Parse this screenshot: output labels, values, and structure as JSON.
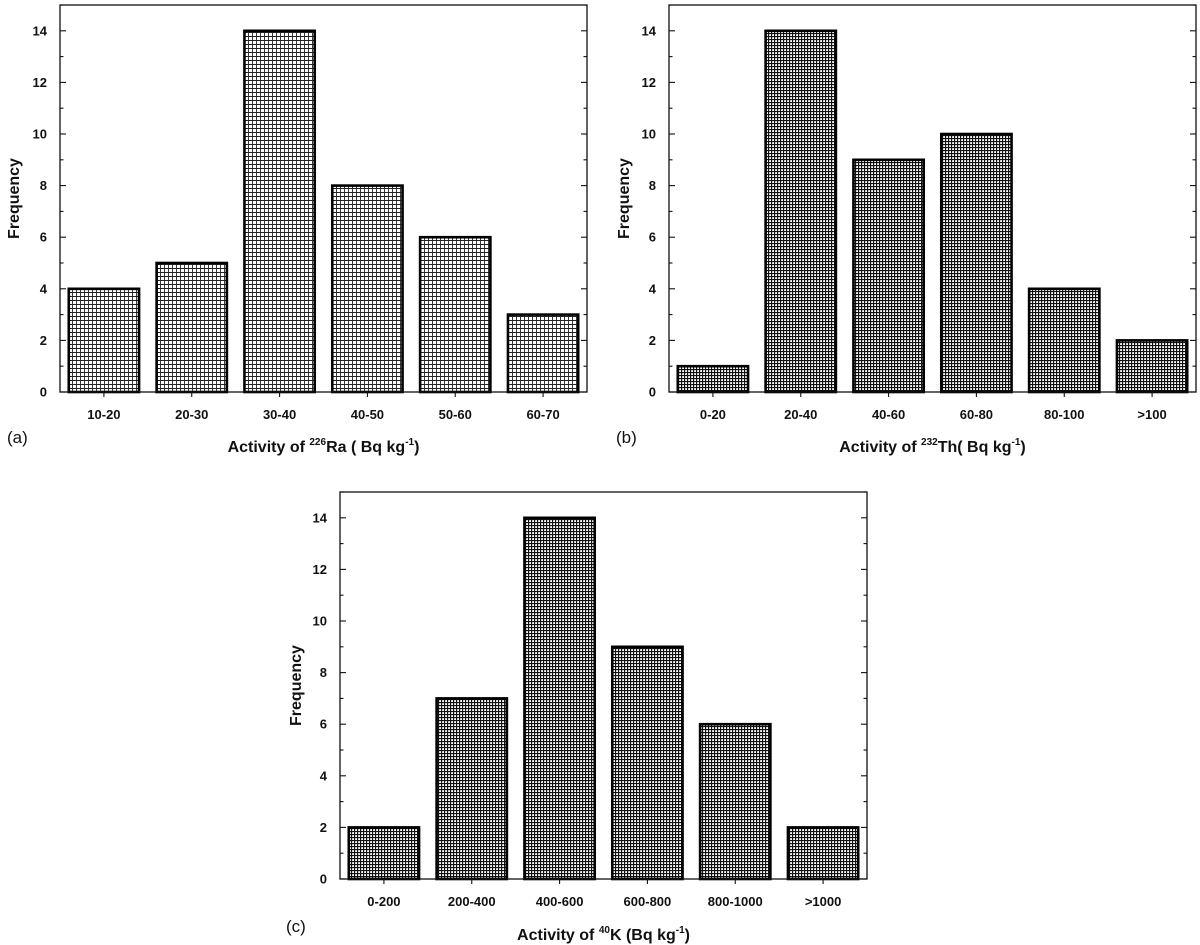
{
  "chart_data": [
    {
      "type": "bar",
      "panel_label": "(a)",
      "categories": [
        "10-20",
        "20-30",
        "30-40",
        "40-50",
        "50-60",
        "60-70"
      ],
      "values": [
        4,
        5,
        14,
        8,
        6,
        3
      ],
      "ylabel": "Frequency",
      "xlabel": {
        "prefix": "Activity of ",
        "isotope_mass": "226",
        "element": "Ra",
        "unit_open": " ( Bq kg",
        "unit_exp": "-1",
        "unit_close": ")"
      },
      "ylim": [
        0,
        15
      ],
      "yticks": [
        "0",
        "2",
        "4",
        "6",
        "8",
        "10",
        "12",
        "14"
      ],
      "fill": "light-grid",
      "grid": false
    },
    {
      "type": "bar",
      "panel_label": "(b)",
      "categories": [
        "0-20",
        "20-40",
        "40-60",
        "60-80",
        "80-100",
        ">100"
      ],
      "values": [
        1,
        14,
        9,
        10,
        4,
        2
      ],
      "ylabel": "Frequency",
      "xlabel": {
        "prefix": "Activity of ",
        "isotope_mass": "232",
        "element": "Th",
        "unit_open": "( Bq kg",
        "unit_exp": "-1",
        "unit_close": ")"
      },
      "ylim": [
        0,
        15
      ],
      "yticks": [
        "0",
        "2",
        "4",
        "6",
        "8",
        "10",
        "12",
        "14"
      ],
      "fill": "dense-grid",
      "grid": false
    },
    {
      "type": "bar",
      "panel_label": "(c)",
      "categories": [
        "0-200",
        "200-400",
        "400-600",
        "600-800",
        "800-1000",
        ">1000"
      ],
      "values": [
        2,
        7,
        14,
        9,
        6,
        2
      ],
      "ylabel": "Frequency",
      "xlabel": {
        "prefix": "Activity of ",
        "isotope_mass": "40",
        "element": "K",
        "unit_open": " (Bq kg",
        "unit_exp": "-1",
        "unit_close": ")"
      },
      "ylim": [
        0,
        15
      ],
      "yticks": [
        "0",
        "2",
        "4",
        "6",
        "8",
        "10",
        "12",
        "14"
      ],
      "fill": "dense-grid",
      "grid": false
    }
  ],
  "colors": {
    "axis": "#111111",
    "bar_edge": "#000000",
    "background": "#ffffff"
  }
}
